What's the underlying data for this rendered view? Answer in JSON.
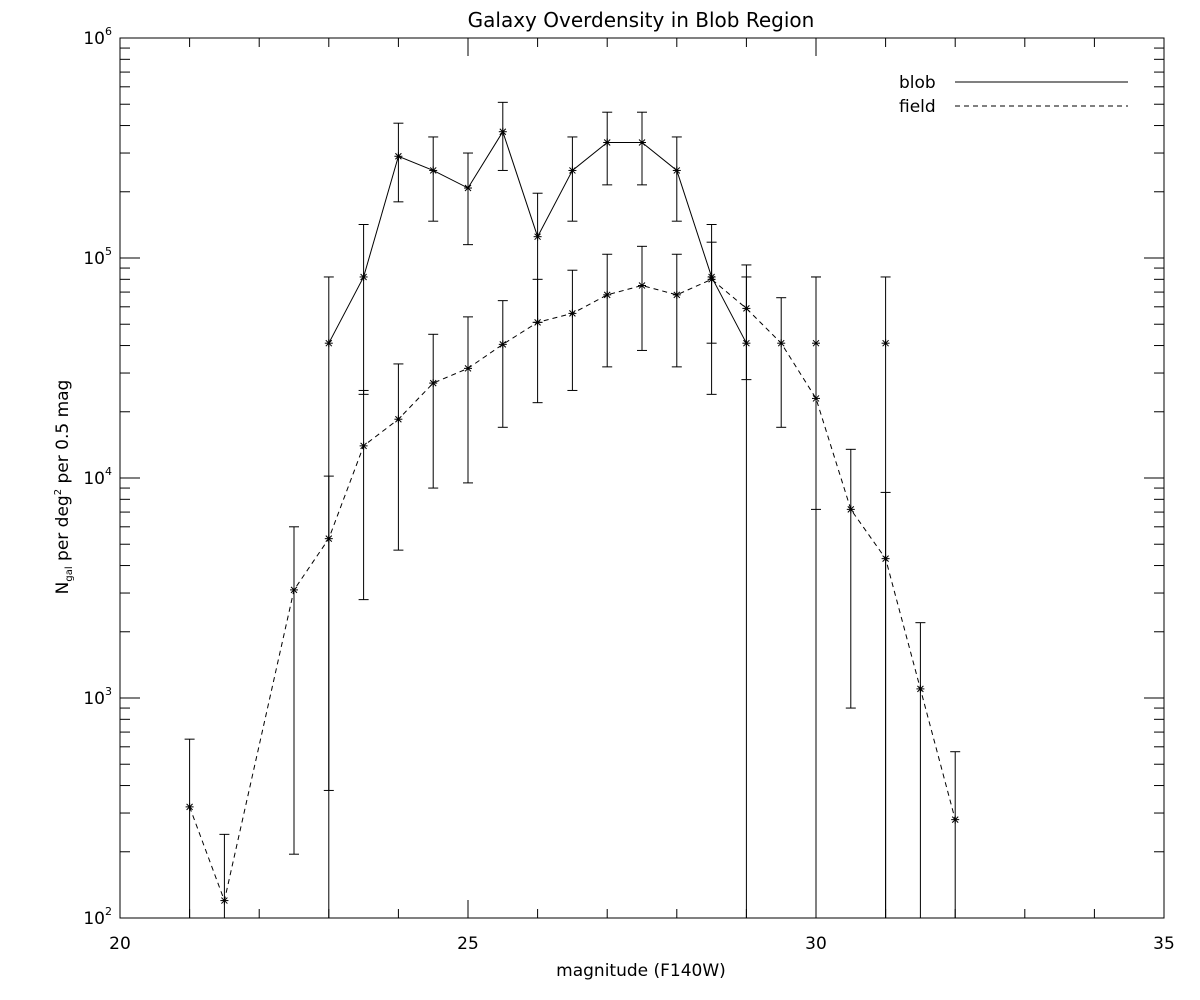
{
  "chart_data": {
    "type": "line",
    "title": "Galaxy Overdensity in Blob Region",
    "xlabel": "magnitude (F140W)",
    "ylabel": {
      "prefix": "N",
      "subscript": "gal",
      "middle": " per deg",
      "superscript": "2",
      "suffix": " per 0.5 mag"
    },
    "xlim": [
      20,
      35
    ],
    "ylim": [
      100,
      1000000
    ],
    "yscale": "log",
    "x_ticks": [
      "20",
      "25",
      "30",
      "35"
    ],
    "y_ticks": [
      {
        "base": "10",
        "exp": "2"
      },
      {
        "base": "10",
        "exp": "3"
      },
      {
        "base": "10",
        "exp": "4"
      },
      {
        "base": "10",
        "exp": "5"
      },
      {
        "base": "10",
        "exp": "6"
      }
    ],
    "grid": false,
    "legend_position": "top-right",
    "series": [
      {
        "name": "blob",
        "line_style": "solid",
        "marker": "asterisk",
        "points": [
          {
            "x": 23.0,
            "y": 41000,
            "lo": 100,
            "hi": 82000
          },
          {
            "x": 23.5,
            "y": 82000,
            "lo": 24000,
            "hi": 142000
          },
          {
            "x": 24.0,
            "y": 290000,
            "lo": 180000,
            "hi": 410000
          },
          {
            "x": 24.5,
            "y": 250000,
            "lo": 147000,
            "hi": 355000
          },
          {
            "x": 25.0,
            "y": 208000,
            "lo": 115000,
            "hi": 300000
          },
          {
            "x": 25.5,
            "y": 375000,
            "lo": 250000,
            "hi": 510000
          },
          {
            "x": 26.0,
            "y": 125000,
            "lo": 51000,
            "hi": 197000
          },
          {
            "x": 26.5,
            "y": 250000,
            "lo": 147000,
            "hi": 355000
          },
          {
            "x": 27.0,
            "y": 335000,
            "lo": 215000,
            "hi": 460000
          },
          {
            "x": 27.5,
            "y": 335000,
            "lo": 215000,
            "hi": 460000
          },
          {
            "x": 28.0,
            "y": 250000,
            "lo": 147000,
            "hi": 355000
          },
          {
            "x": 28.5,
            "y": 82000,
            "lo": 24000,
            "hi": 142000
          },
          {
            "x": 29.0,
            "y": 41000,
            "lo": 100,
            "hi": 82000
          }
        ]
      },
      {
        "name": "field",
        "line_style": "dashed",
        "marker": "asterisk",
        "points": [
          {
            "x": 21.0,
            "y": 320,
            "lo": 100,
            "hi": 650
          },
          {
            "x": 21.5,
            "y": 120,
            "lo": 100,
            "hi": 240
          },
          {
            "x": 22.5,
            "y": 3100,
            "lo": 195,
            "hi": 6000
          },
          {
            "x": 23.0,
            "y": 5300,
            "lo": 380,
            "hi": 10200
          },
          {
            "x": 23.5,
            "y": 14000,
            "lo": 2800,
            "hi": 25000
          },
          {
            "x": 24.0,
            "y": 18500,
            "lo": 4700,
            "hi": 33000
          },
          {
            "x": 24.5,
            "y": 27000,
            "lo": 9000,
            "hi": 45000
          },
          {
            "x": 25.0,
            "y": 31500,
            "lo": 9500,
            "hi": 54000
          },
          {
            "x": 25.5,
            "y": 40500,
            "lo": 17000,
            "hi": 64000
          },
          {
            "x": 26.0,
            "y": 51000,
            "lo": 22000,
            "hi": 80000
          },
          {
            "x": 26.5,
            "y": 56000,
            "lo": 25000,
            "hi": 88000
          },
          {
            "x": 27.0,
            "y": 68000,
            "lo": 32000,
            "hi": 104000
          },
          {
            "x": 27.5,
            "y": 75000,
            "lo": 38000,
            "hi": 113000
          },
          {
            "x": 28.0,
            "y": 68000,
            "lo": 32000,
            "hi": 104000
          },
          {
            "x": 28.5,
            "y": 80000,
            "lo": 41000,
            "hi": 118000
          },
          {
            "x": 29.0,
            "y": 59000,
            "lo": 28000,
            "hi": 93000
          },
          {
            "x": 29.5,
            "y": 41000,
            "lo": 17000,
            "hi": 66000
          },
          {
            "x": 30.0,
            "y": 23000,
            "lo": 7200,
            "hi": 82000
          },
          {
            "x": 30.5,
            "y": 7200,
            "lo": 900,
            "hi": 13500
          },
          {
            "x": 31.0,
            "y": 4300,
            "lo": 100,
            "hi": 8600
          },
          {
            "x": 31.5,
            "y": 1100,
            "lo": 100,
            "hi": 2200
          },
          {
            "x": 32.0,
            "y": 280,
            "lo": 100,
            "hi": 570
          }
        ]
      }
    ],
    "extra_errorbars": [
      {
        "x": 30.0,
        "y": 41000,
        "lo": 100,
        "hi": 82000
      },
      {
        "x": 31.0,
        "y": 41000,
        "lo": 100,
        "hi": 82000
      }
    ]
  }
}
